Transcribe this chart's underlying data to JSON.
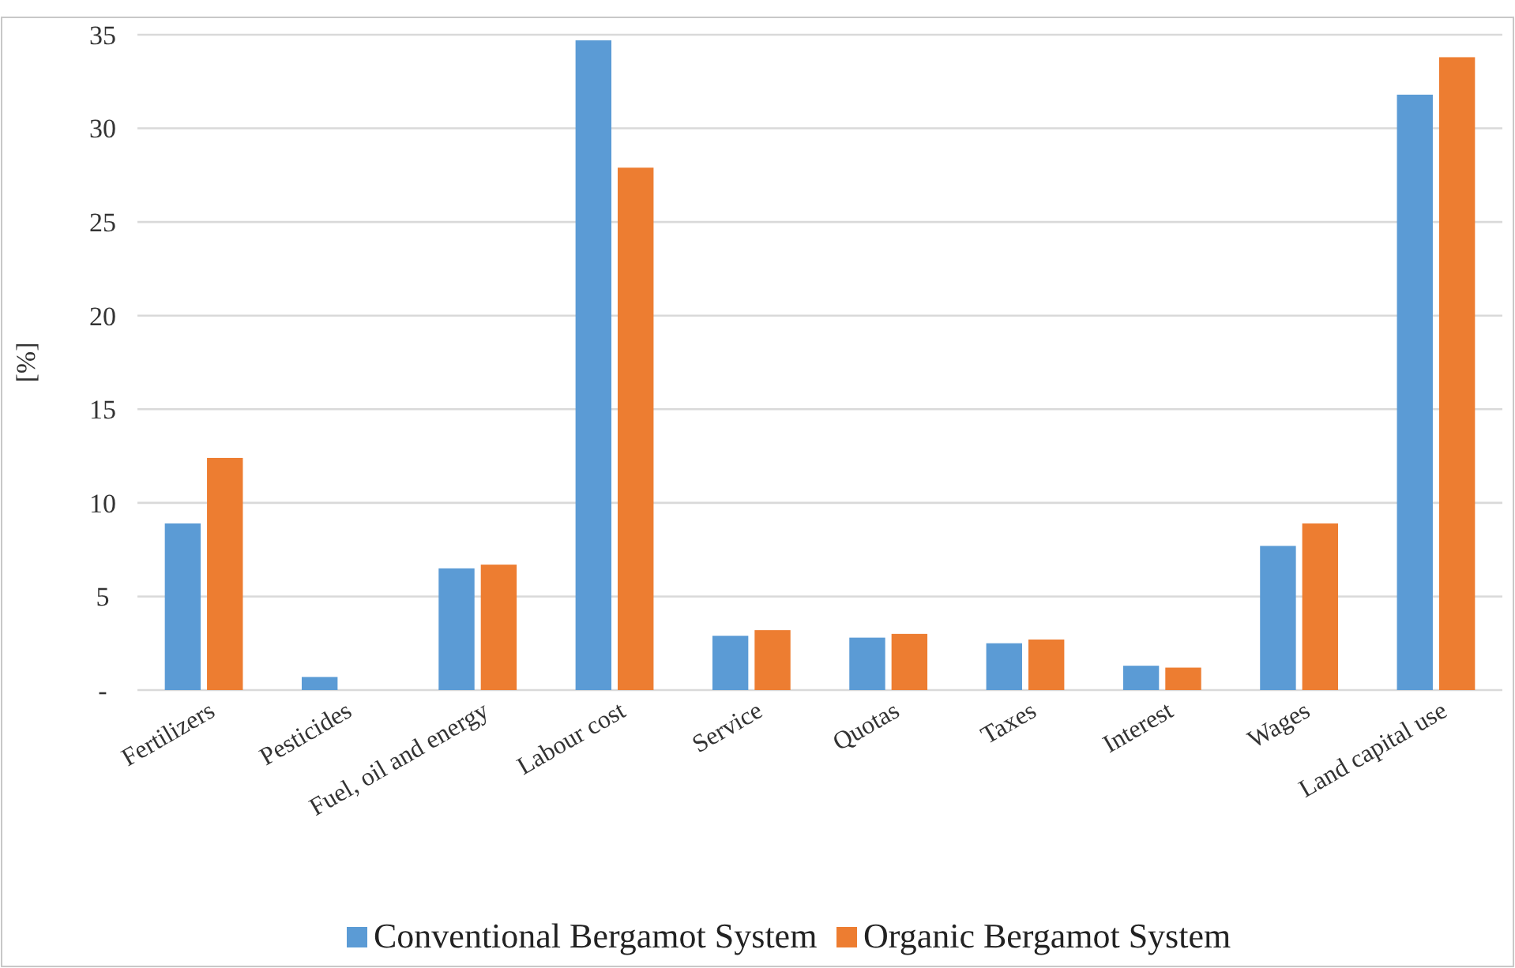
{
  "chart_data": {
    "type": "bar",
    "ylabel": "[%]",
    "categories": [
      "Fertilizers",
      "Pesticides",
      "Fuel, oil and energy",
      "Labour cost",
      "Service",
      "Quotas",
      "Taxes",
      "Interest",
      "Wages",
      "Land capital use"
    ],
    "series": [
      {
        "name": "Conventional Bergamot System",
        "color": "#5b9bd5",
        "values": [
          8.9,
          0.7,
          6.5,
          34.7,
          2.9,
          2.8,
          2.5,
          1.3,
          7.7,
          31.8
        ]
      },
      {
        "name": "Organic Bergamot System",
        "color": "#ed7d31",
        "values": [
          12.4,
          0,
          6.7,
          27.9,
          3.2,
          3.0,
          2.7,
          1.2,
          8.9,
          33.8
        ]
      }
    ],
    "ylim": [
      0,
      35
    ],
    "yticks": [
      {
        "value": 0,
        "label": "-"
      },
      5,
      10,
      15,
      20,
      25,
      30,
      35
    ],
    "grid": "y",
    "legend": "bottom"
  }
}
